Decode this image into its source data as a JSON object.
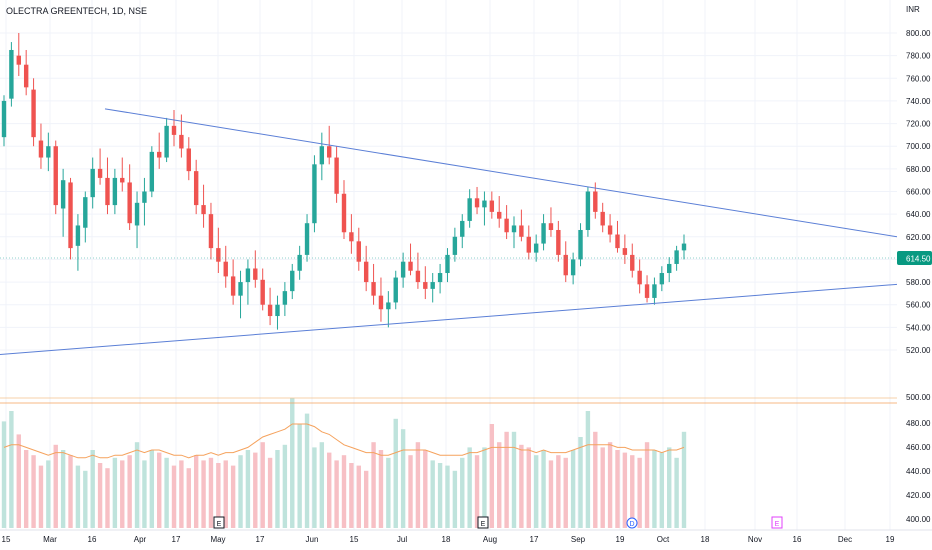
{
  "header": {
    "title": "OLECTRA GREENTECH, 1D, NSE"
  },
  "colors": {
    "up": "#26a69a",
    "down": "#ef5350",
    "up_volume": "#bfe3dc",
    "down_volume": "#f7c0c5",
    "trendline": "#5b7fd6",
    "volume_ma": "#f5a25d",
    "price_tag": "#089981",
    "grid": "#f0f3fa",
    "axis_text": "#131722"
  },
  "chart_data": {
    "type": "candlestick",
    "title": "OLECTRA GREENTECH, 1D, NSE",
    "currency_label": "INR",
    "last_price": "614.50",
    "price_axis": {
      "ylim": [
        500,
        810
      ],
      "ticks": [
        "800.00",
        "780.00",
        "760.00",
        "740.00",
        "720.00",
        "700.00",
        "680.00",
        "660.00",
        "640.00",
        "620.00",
        "600.00",
        "580.00",
        "560.00",
        "540.00",
        "520.00",
        "500.00"
      ]
    },
    "volume_axis": {
      "ticks": [
        "480.00",
        "460.00",
        "440.00",
        "420.00",
        "400.00"
      ]
    },
    "x_ticks": [
      "15",
      "Mar",
      "16",
      "Apr",
      "17",
      "May",
      "17",
      "Jun",
      "15",
      "Jul",
      "18",
      "Aug",
      "17",
      "Sep",
      "19",
      "Oct",
      "18",
      "Nov",
      "16",
      "Dec",
      "19"
    ],
    "event_markers": [
      {
        "label": "E",
        "tick_index": 5
      },
      {
        "label": "E",
        "tick_index": 10
      },
      {
        "label": "D",
        "tick_index": 14
      },
      {
        "label": "E",
        "tick_index": 17
      }
    ],
    "candles": [
      [
        708,
        745,
        700,
        740
      ],
      [
        742,
        792,
        735,
        785
      ],
      [
        780,
        800,
        762,
        772
      ],
      [
        772,
        785,
        745,
        752
      ],
      [
        750,
        760,
        700,
        708
      ],
      [
        705,
        720,
        680,
        690
      ],
      [
        690,
        712,
        678,
        700
      ],
      [
        700,
        705,
        640,
        648
      ],
      [
        645,
        680,
        620,
        670
      ],
      [
        668,
        672,
        600,
        610
      ],
      [
        612,
        640,
        590,
        630
      ],
      [
        628,
        660,
        615,
        655
      ],
      [
        655,
        690,
        645,
        680
      ],
      [
        680,
        698,
        666,
        672
      ],
      [
        672,
        690,
        640,
        648
      ],
      [
        648,
        680,
        640,
        672
      ],
      [
        672,
        690,
        660,
        668
      ],
      [
        668,
        684,
        626,
        632
      ],
      [
        630,
        660,
        610,
        650
      ],
      [
        650,
        672,
        630,
        660
      ],
      [
        660,
        700,
        655,
        695
      ],
      [
        695,
        712,
        680,
        690
      ],
      [
        690,
        725,
        686,
        718
      ],
      [
        718,
        732,
        700,
        710
      ],
      [
        710,
        728,
        690,
        698
      ],
      [
        698,
        708,
        670,
        678
      ],
      [
        678,
        688,
        640,
        648
      ],
      [
        648,
        666,
        628,
        640
      ],
      [
        640,
        650,
        600,
        610
      ],
      [
        610,
        628,
        588,
        598
      ],
      [
        598,
        612,
        575,
        585
      ],
      [
        585,
        600,
        560,
        568
      ],
      [
        568,
        590,
        548,
        580
      ],
      [
        580,
        600,
        560,
        592
      ],
      [
        592,
        608,
        575,
        582
      ],
      [
        582,
        592,
        555,
        560
      ],
      [
        560,
        575,
        542,
        550
      ],
      [
        550,
        568,
        538,
        560
      ],
      [
        560,
        580,
        550,
        572
      ],
      [
        572,
        596,
        565,
        590
      ],
      [
        590,
        612,
        582,
        604
      ],
      [
        604,
        640,
        598,
        632
      ],
      [
        632,
        692,
        624,
        684
      ],
      [
        684,
        712,
        670,
        700
      ],
      [
        700,
        718,
        684,
        690
      ],
      [
        690,
        700,
        650,
        658
      ],
      [
        658,
        670,
        618,
        624
      ],
      [
        624,
        640,
        605,
        616
      ],
      [
        616,
        628,
        590,
        598
      ],
      [
        598,
        612,
        572,
        580
      ],
      [
        580,
        596,
        560,
        568
      ],
      [
        568,
        584,
        545,
        556
      ],
      [
        556,
        572,
        540,
        562
      ],
      [
        562,
        590,
        556,
        584
      ],
      [
        584,
        606,
        575,
        598
      ],
      [
        598,
        614,
        586,
        590
      ],
      [
        590,
        606,
        574,
        580
      ],
      [
        580,
        594,
        565,
        574
      ],
      [
        574,
        588,
        562,
        580
      ],
      [
        580,
        596,
        570,
        588
      ],
      [
        588,
        610,
        580,
        604
      ],
      [
        604,
        628,
        598,
        620
      ],
      [
        620,
        640,
        610,
        634
      ],
      [
        634,
        662,
        628,
        654
      ],
      [
        654,
        664,
        640,
        646
      ],
      [
        646,
        660,
        630,
        652
      ],
      [
        652,
        660,
        636,
        642
      ],
      [
        642,
        656,
        628,
        636
      ],
      [
        636,
        648,
        618,
        624
      ],
      [
        624,
        638,
        610,
        630
      ],
      [
        630,
        644,
        616,
        620
      ],
      [
        620,
        630,
        600,
        606
      ],
      [
        606,
        622,
        598,
        614
      ],
      [
        614,
        640,
        608,
        632
      ],
      [
        632,
        646,
        620,
        626
      ],
      [
        626,
        634,
        598,
        604
      ],
      [
        604,
        616,
        580,
        586
      ],
      [
        586,
        606,
        578,
        600
      ],
      [
        600,
        632,
        594,
        626
      ],
      [
        626,
        664,
        620,
        660
      ],
      [
        660,
        668,
        636,
        642
      ],
      [
        642,
        650,
        624,
        630
      ],
      [
        630,
        640,
        615,
        622
      ],
      [
        622,
        634,
        606,
        610
      ],
      [
        610,
        622,
        596,
        604
      ],
      [
        604,
        614,
        584,
        590
      ],
      [
        590,
        600,
        570,
        578
      ],
      [
        578,
        586,
        562,
        566
      ],
      [
        566,
        584,
        560,
        578
      ],
      [
        578,
        594,
        572,
        588
      ],
      [
        588,
        602,
        580,
        596
      ],
      [
        596,
        612,
        590,
        608
      ],
      [
        608,
        622,
        600,
        614
      ]
    ],
    "volumes": [
      41,
      45,
      36,
      30,
      28,
      24,
      26,
      32,
      30,
      28,
      24,
      22,
      30,
      25,
      23,
      27,
      26,
      28,
      33,
      26,
      30,
      29,
      27,
      24,
      26,
      23,
      28,
      26,
      27,
      25,
      26,
      24,
      28,
      30,
      29,
      33,
      27,
      30,
      32,
      50,
      40,
      44,
      31,
      33,
      29,
      26,
      28,
      25,
      24,
      22,
      33,
      30,
      27,
      42,
      38,
      28,
      33,
      30,
      26,
      25,
      24,
      22,
      27,
      31,
      28,
      31,
      40,
      33,
      37,
      37,
      32,
      31,
      28,
      30,
      26,
      28,
      27,
      30,
      35,
      45,
      37,
      31,
      33,
      30,
      29,
      28,
      27,
      33,
      30,
      29,
      31,
      27,
      37
    ],
    "volume_ma": [
      31,
      32,
      32,
      31,
      30,
      29,
      28,
      29,
      29,
      28,
      27,
      27,
      28,
      27,
      27,
      28,
      28,
      29,
      30,
      29,
      30,
      30,
      29,
      28,
      28,
      27,
      28,
      28,
      29,
      28,
      29,
      29,
      30,
      31,
      33,
      35,
      36,
      37,
      38,
      40,
      40,
      40,
      39,
      37,
      36,
      34,
      32,
      31,
      30,
      29,
      29,
      28,
      28,
      29,
      30,
      30,
      30,
      30,
      29,
      28,
      28,
      28,
      28,
      29,
      29,
      30,
      31,
      31,
      31,
      31,
      30,
      30,
      29,
      30,
      29,
      29,
      29,
      30,
      31,
      32,
      32,
      32,
      32,
      31,
      31,
      30,
      30,
      30,
      30,
      29,
      30,
      30,
      31
    ],
    "trendlines": [
      {
        "name": "",
        "points": [
          [
            0,
            733
          ],
          [
            1,
            620
          ]
        ]
      },
      {
        "name": "",
        "points": [
          [
            0,
            516
          ],
          [
            1,
            578
          ]
        ]
      }
    ]
  }
}
